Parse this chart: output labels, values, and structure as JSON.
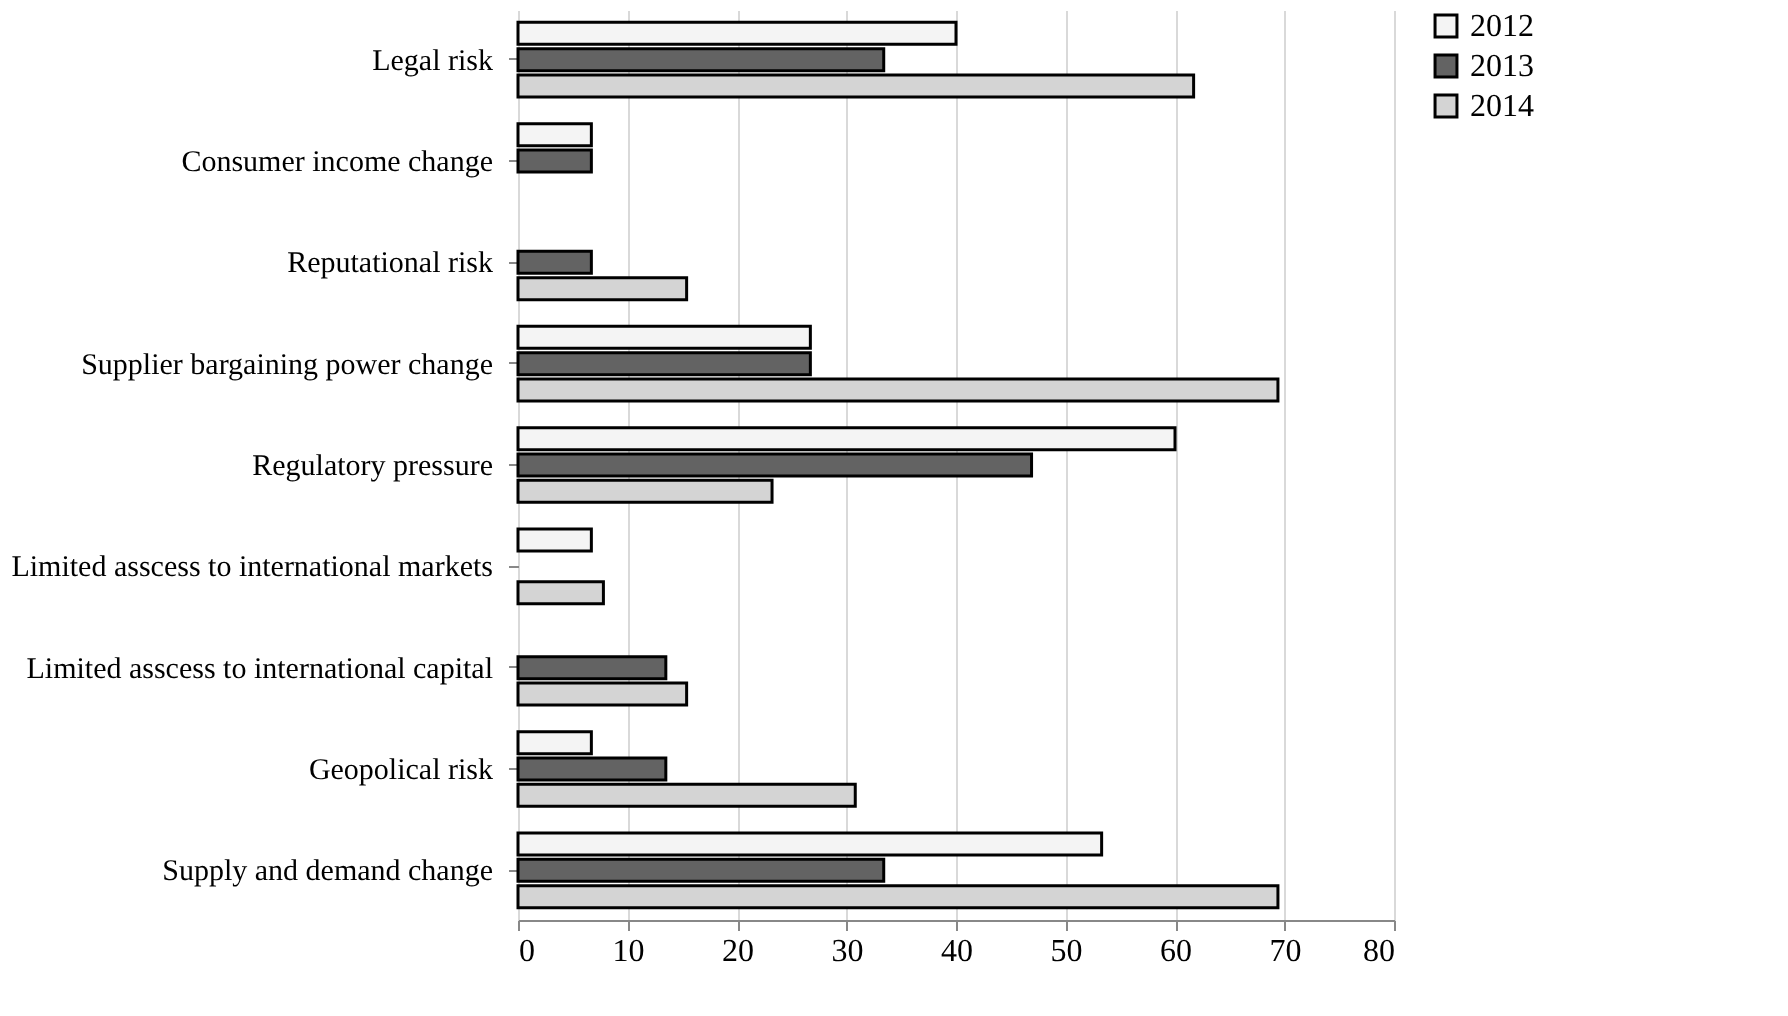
{
  "chart_data": {
    "type": "bar",
    "orientation": "horizontal",
    "categories": [
      "Legal risk",
      "Consumer income change",
      "Reputational risk",
      "Supplier bargaining power change",
      "Regulatory pressure",
      "Limited asscess to international markets",
      "Limited asscess to international capital",
      "Geopolical risk",
      "Supply and demand change"
    ],
    "series": [
      {
        "name": "2012",
        "color": "#f4f4f4",
        "values": [
          40,
          6.7,
          null,
          26.7,
          60,
          6.7,
          null,
          6.7,
          53.3
        ]
      },
      {
        "name": "2013",
        "color": "#636363",
        "values": [
          33.4,
          6.7,
          6.7,
          26.7,
          46.9,
          null,
          13.5,
          13.5,
          33.4
        ]
      },
      {
        "name": "2014",
        "color": "#d4d4d4",
        "values": [
          61.7,
          null,
          15.4,
          69.4,
          23.2,
          7.8,
          15.4,
          30.8,
          69.4
        ]
      }
    ],
    "xlim": [
      0,
      80
    ],
    "xticks": [
      0,
      10,
      20,
      30,
      40,
      50,
      60,
      70,
      80
    ],
    "grid": "x",
    "legend": "right"
  }
}
